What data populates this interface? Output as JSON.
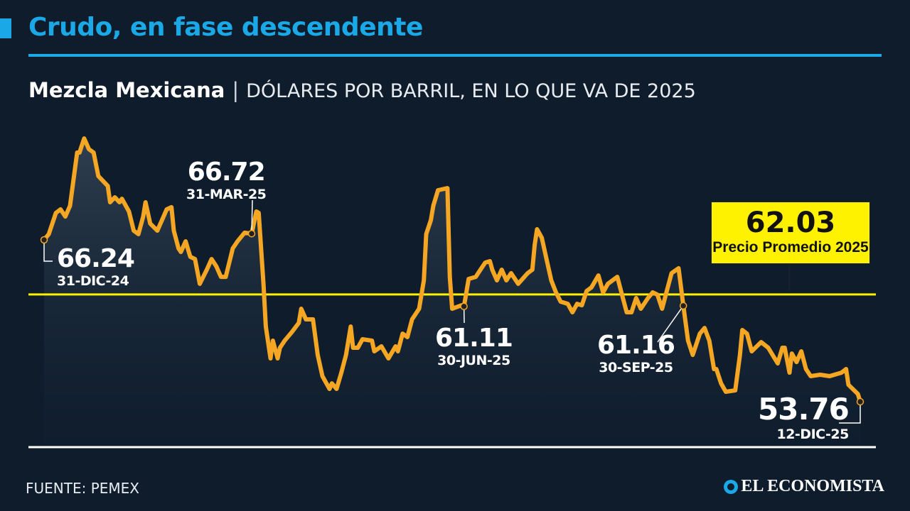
{
  "header": {
    "title": "Crudo, en fase descendente",
    "subtitle_bold": "Mezcla Mexicana",
    "separator": "|",
    "subtitle_unit": "DÓLARES POR BARRIL, EN LO QUE VA DE 2025"
  },
  "colors": {
    "accent": "#1aa8e6",
    "line": "#f5a623",
    "average": "#fff200",
    "background": "#0e1c2c"
  },
  "chart_data": {
    "type": "line",
    "title": "Mezcla Mexicana",
    "ylabel": "Dólares por barril",
    "x_unit": "days since 31-DIC-24",
    "xlim": [
      0,
      346
    ],
    "ylim": [
      50.26,
      75.98
    ],
    "grid": false,
    "series": [
      {
        "name": "Mezcla Mexicana",
        "x": [
          0,
          2,
          5,
          7,
          9,
          11,
          14,
          15,
          17,
          19,
          21,
          23,
          25,
          27,
          28,
          30,
          32,
          33,
          36,
          38,
          40,
          42,
          43,
          45,
          48,
          50,
          52,
          54,
          55,
          57,
          58,
          60,
          62,
          64,
          66,
          69,
          71,
          73,
          75,
          77,
          80,
          82,
          85,
          88,
          90,
          91,
          93,
          94,
          96,
          97,
          99,
          100,
          102,
          105,
          108,
          109,
          111,
          114,
          116,
          118,
          121,
          122,
          124,
          126,
          128,
          130,
          131,
          133,
          135,
          139,
          140,
          143,
          146,
          149,
          150,
          152,
          154,
          156,
          159,
          161,
          162,
          164,
          165,
          167,
          171,
          172,
          173,
          177,
          178,
          180,
          183,
          185,
          187,
          189,
          190,
          192,
          194,
          196,
          198,
          201,
          205,
          207,
          208,
          209,
          211,
          213,
          215,
          217,
          219,
          222,
          224,
          226,
          228,
          230,
          232,
          235,
          237,
          239,
          243,
          245,
          247,
          249,
          251,
          253,
          256,
          258,
          260,
          262,
          264,
          266,
          269,
          271,
          273,
          275,
          278,
          280,
          282,
          284,
          285,
          287,
          289,
          293,
          295,
          296,
          298,
          300,
          304,
          307,
          311,
          313,
          314,
          316,
          317,
          319,
          321,
          323,
          325,
          329,
          333,
          338,
          340,
          341,
          345,
          346
        ],
        "values": [
          66.24,
          66.68,
          68.32,
          68.59,
          68.04,
          68.87,
          72.97,
          72.97,
          74.06,
          73.24,
          72.97,
          71.16,
          70.78,
          70.4,
          69.14,
          69.52,
          69.14,
          69.41,
          68.43,
          66.95,
          66.68,
          68.04,
          69.14,
          67.5,
          66.95,
          67.77,
          68.59,
          68.76,
          66.95,
          65.58,
          65.31,
          66.13,
          64.93,
          64.76,
          62.85,
          63.94,
          64.76,
          64.21,
          63.39,
          63.39,
          65.58,
          66.13,
          66.79,
          66.72,
          68.43,
          68.32,
          62.85,
          59.56,
          57.1,
          58.47,
          57.1,
          57.92,
          58.47,
          59.12,
          59.84,
          60.93,
          60.11,
          60.11,
          57.37,
          55.73,
          54.75,
          55.18,
          54.75,
          56.0,
          57.37,
          59.56,
          57.92,
          57.92,
          58.58,
          58.47,
          57.65,
          58.03,
          57.1,
          58.03,
          57.65,
          59.01,
          58.74,
          60.11,
          60.93,
          63.12,
          66.68,
          67.77,
          68.87,
          70.07,
          70.23,
          63.39,
          60.93,
          61.2,
          61.11,
          63.23,
          63.39,
          63.94,
          64.49,
          64.6,
          63.94,
          63.12,
          63.94,
          63.12,
          63.67,
          62.85,
          63.67,
          63.94,
          65.86,
          67.06,
          66.4,
          64.76,
          63.12,
          62.19,
          61.48,
          61.31,
          60.66,
          61.31,
          61.2,
          62.3,
          62.57,
          63.5,
          62.19,
          62.85,
          63.39,
          62.02,
          60.66,
          60.66,
          61.75,
          60.93,
          61.75,
          62.19,
          62.02,
          60.93,
          62.3,
          63.67,
          64.05,
          61.16,
          58.47,
          57.37,
          59.01,
          59.45,
          58.47,
          56.28,
          56.28,
          55.18,
          54.53,
          54.64,
          57.37,
          59.29,
          59.01,
          57.65,
          58.36,
          57.92,
          56.72,
          57.92,
          57.92,
          56.0,
          57.48,
          56.82,
          57.65,
          56.28,
          55.73,
          55.84,
          55.73,
          56.0,
          56.28,
          55.07,
          54.36,
          53.76
        ]
      }
    ],
    "average": {
      "value": "62.03",
      "label": "Precio Promedio 2025",
      "numeric": 62.03
    },
    "annotations": [
      {
        "value": "66.24",
        "date": "31-DIC-24",
        "x": 0,
        "y": 66.24
      },
      {
        "value": "66.72",
        "date": "31-MAR-25",
        "x": 88,
        "y": 66.72
      },
      {
        "value": "61.11",
        "date": "30-JUN-25",
        "x": 178,
        "y": 61.11
      },
      {
        "value": "61.16",
        "date": "30-SEP-25",
        "x": 271,
        "y": 61.16
      },
      {
        "value": "53.76",
        "date": "12-DIC-25",
        "x": 346,
        "y": 53.76
      }
    ]
  },
  "footer": {
    "source": "FUENTE: PEMEX",
    "brand": "EL ECONOMISTA"
  }
}
